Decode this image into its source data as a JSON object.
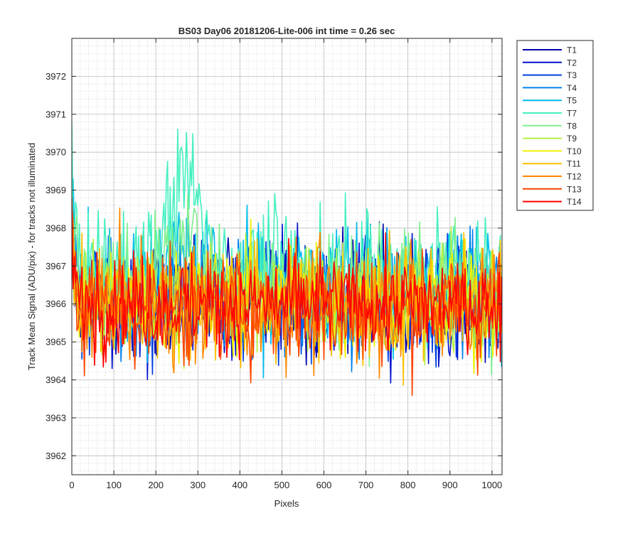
{
  "chart_data": {
    "type": "line",
    "title": "BS03 Day06 20181206-Lite-006 int time = 0.26 sec",
    "xlabel": "Pixels",
    "ylabel": "Track Mean Signal (ADU/pix) - for tracks not illuminated",
    "xlim": [
      0,
      1024
    ],
    "ylim": [
      3961.5,
      3973
    ],
    "x_ticks": [
      0,
      100,
      200,
      300,
      400,
      500,
      600,
      700,
      800,
      900,
      1000
    ],
    "x_tick_labels": [
      "0",
      "100",
      "200",
      "300",
      "400",
      "500",
      "600",
      "700",
      "800",
      "900",
      "1000"
    ],
    "y_ticks": [
      3962,
      3963,
      3964,
      3965,
      3966,
      3967,
      3968,
      3969,
      3970,
      3971,
      3972
    ],
    "y_tick_labels": [
      "3962",
      "3963",
      "3964",
      "3965",
      "3966",
      "3967",
      "3968",
      "3969",
      "3970",
      "3971",
      "3972"
    ],
    "grid": true,
    "minor_grid": true,
    "legend_position": "outside-top-right",
    "x_step": 3,
    "series": [
      {
        "name": "T1",
        "color": "#0000aa",
        "mean": 3966.2,
        "amplitude": 1.9
      },
      {
        "name": "T2",
        "color": "#0011cc",
        "mean": 3966.1,
        "amplitude": 1.9
      },
      {
        "name": "T3",
        "color": "#0040e0",
        "mean": 3966.1,
        "amplitude": 1.9
      },
      {
        "name": "T4",
        "color": "#0080ee",
        "mean": 3966.3,
        "amplitude": 2.0
      },
      {
        "name": "T5",
        "color": "#00bbee",
        "mean": 3966.5,
        "amplitude": 2.1
      },
      {
        "name": "T7",
        "color": "#44f0c0",
        "mean": 3966.9,
        "amplitude": 2.1
      },
      {
        "name": "T8",
        "color": "#80f090",
        "mean": 3966.5,
        "amplitude": 1.9
      },
      {
        "name": "T9",
        "color": "#b4f040",
        "mean": 3966.2,
        "amplitude": 1.8
      },
      {
        "name": "T10",
        "color": "#f0f000",
        "mean": 3966.1,
        "amplitude": 1.9
      },
      {
        "name": "T11",
        "color": "#ffc000",
        "mean": 3966.0,
        "amplitude": 1.9
      },
      {
        "name": "T12",
        "color": "#ff8800",
        "mean": 3966.0,
        "amplitude": 1.9
      },
      {
        "name": "T13",
        "color": "#ff4400",
        "mean": 3965.9,
        "amplitude": 1.9
      },
      {
        "name": "T14",
        "color": "#ff0000",
        "mean": 3966.0,
        "amplitude": 1.6
      }
    ]
  }
}
